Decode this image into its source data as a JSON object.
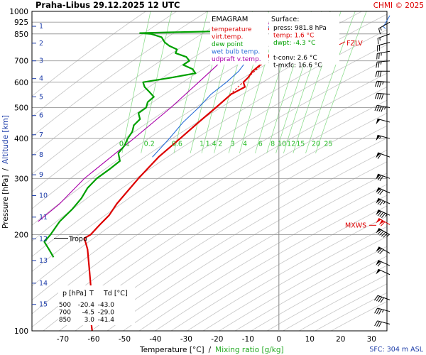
{
  "header": {
    "station": "Praha-Libus",
    "datetime": "29.12.2025 12 UTC",
    "credit": "CHMI © 2025"
  },
  "legend": {
    "title": "EMAGRAM",
    "items": [
      {
        "label": "temperature",
        "color": "#dd0000"
      },
      {
        "label": "virt.temp.",
        "color": "#dd0000"
      },
      {
        "label": "dew point",
        "color": "#00a000"
      },
      {
        "label": "wet bulb temp.",
        "color": "#2a6ed8"
      },
      {
        "label": "udpraft v.temp.",
        "color": "#aa00aa"
      }
    ]
  },
  "surface_box": {
    "title": "Surface:",
    "lines": [
      {
        "text": "press: 981.8 hPa",
        "color": "#000000"
      },
      {
        "text": "temp: 1.6 °C",
        "color": "#dd0000"
      },
      {
        "text": "dwpt: -4.3 °C",
        "color": "#00a000"
      },
      {
        "text": "",
        "color": "#000000"
      },
      {
        "text": "t-conv: 2.6 °C",
        "color": "#000000"
      },
      {
        "text": "t-mxfc: 16.6 °C",
        "color": "#000000"
      }
    ]
  },
  "table": {
    "headers": [
      "p [hPa]",
      "T",
      "Td [°C]"
    ],
    "rows": [
      [
        "500",
        "-20.4",
        "-43.0"
      ],
      [
        "700",
        "-4.5",
        "-29.0"
      ],
      [
        "850",
        "3.0",
        "-41.4"
      ]
    ]
  },
  "annotations": {
    "tropo": "Tropo",
    "mxws": "MXWS",
    "fzlv": "FZLV",
    "sfc": "SFC: 304 m ASL"
  },
  "chart_data": {
    "type": "line",
    "title": "",
    "xlabel": "Temperature [°C]",
    "xlabel_sep": "/",
    "xlabel2": "Mixing ratio [g/kg]",
    "ylabel": "Pressure [hPa]",
    "ylabel_sep": "/",
    "ylabel2": "Altitude [km]",
    "xlim": [
      -80,
      35
    ],
    "ylim": [
      1000,
      100
    ],
    "y_scale": "log",
    "x_ticks": [
      -70,
      -60,
      -50,
      -40,
      -30,
      -20,
      -10,
      0,
      10,
      20,
      30
    ],
    "p_ticks": [
      100,
      200,
      300,
      400,
      500,
      600,
      700,
      850,
      925,
      1000
    ],
    "p_gridlines": [
      200,
      300,
      400,
      500,
      600,
      700,
      850,
      925
    ],
    "altitude_ticks": [
      {
        "km": "1",
        "p": 898
      },
      {
        "km": "2",
        "p": 795
      },
      {
        "km": "3",
        "p": 700
      },
      {
        "km": "4",
        "p": 616
      },
      {
        "km": "5",
        "p": 540
      },
      {
        "km": "6",
        "p": 472
      },
      {
        "km": "7",
        "p": 411
      },
      {
        "km": "8",
        "p": 356
      },
      {
        "km": "9",
        "p": 308
      },
      {
        "km": "10",
        "p": 265
      },
      {
        "km": "11",
        "p": 227
      },
      {
        "km": "12",
        "p": 194
      },
      {
        "km": "13",
        "p": 166
      },
      {
        "km": "14",
        "p": 141
      },
      {
        "km": "15",
        "p": 121
      }
    ],
    "mixing_ratio_labels": [
      "0.1",
      "0.2",
      "0.6",
      "1",
      "1.4",
      "2",
      "3",
      "4",
      "6",
      "8",
      "10",
      "12",
      "15",
      "20",
      "25"
    ],
    "mixing_ratio_label_p": 405,
    "mixing_ratio_label_t": [
      -50,
      -42,
      -33,
      -25,
      -22,
      -19,
      -15,
      -11,
      -6,
      -2,
      1,
      4,
      7,
      12,
      16
    ],
    "tropopause_p": 195,
    "fzlv_p": 795,
    "mxws_p": 214,
    "series": [
      {
        "name": "temperature",
        "color": "#dd0000",
        "points": [
          {
            "p": 981.8,
            "t": 1.6
          },
          {
            "p": 950,
            "t": 1.0
          },
          {
            "p": 900,
            "t": 1.0
          },
          {
            "p": 880,
            "t": -3.5
          },
          {
            "p": 860,
            "t": 5.0
          },
          {
            "p": 850,
            "t": 3.0
          },
          {
            "p": 820,
            "t": 1.0
          },
          {
            "p": 780,
            "t": -1.0
          },
          {
            "p": 700,
            "t": -4.5
          },
          {
            "p": 650,
            "t": -8.5
          },
          {
            "p": 620,
            "t": -10.0
          },
          {
            "p": 600,
            "t": -11.5
          },
          {
            "p": 580,
            "t": -11.0
          },
          {
            "p": 550,
            "t": -15.5
          },
          {
            "p": 500,
            "t": -20.4
          },
          {
            "p": 450,
            "t": -26.0
          },
          {
            "p": 400,
            "t": -32.0
          },
          {
            "p": 350,
            "t": -39.0
          },
          {
            "p": 300,
            "t": -45.5
          },
          {
            "p": 250,
            "t": -52.5
          },
          {
            "p": 230,
            "t": -55.0
          },
          {
            "p": 215,
            "t": -58.0
          },
          {
            "p": 200,
            "t": -61.0
          },
          {
            "p": 195,
            "t": -63.0
          },
          {
            "p": 180,
            "t": -62.0
          },
          {
            "p": 160,
            "t": -61.5
          },
          {
            "p": 140,
            "t": -61.0
          },
          {
            "p": 125,
            "t": -60.5
          },
          {
            "p": 110,
            "t": -61.0
          },
          {
            "p": 100,
            "t": -60.5
          }
        ]
      },
      {
        "name": "virt.temp.",
        "color": "#dd0000",
        "dashed": true,
        "points": [
          {
            "p": 981.8,
            "t": 2.2
          },
          {
            "p": 950,
            "t": 1.6
          },
          {
            "p": 900,
            "t": 1.5
          },
          {
            "p": 880,
            "t": -3.0
          },
          {
            "p": 860,
            "t": 5.4
          },
          {
            "p": 850,
            "t": 3.4
          },
          {
            "p": 700,
            "t": -4.3
          },
          {
            "p": 500,
            "t": -20.3
          }
        ]
      },
      {
        "name": "dew point",
        "color": "#00a000",
        "points": [
          {
            "p": 981.8,
            "t": -4.3
          },
          {
            "p": 950,
            "t": -5.0
          },
          {
            "p": 900,
            "t": -6.0
          },
          {
            "p": 870,
            "t": -10.0
          },
          {
            "p": 860,
            "t": -35.0
          },
          {
            "p": 855,
            "t": -45.0
          },
          {
            "p": 850,
            "t": -41.4
          },
          {
            "p": 830,
            "t": -38.0
          },
          {
            "p": 800,
            "t": -37.0
          },
          {
            "p": 780,
            "t": -35.5
          },
          {
            "p": 760,
            "t": -33.0
          },
          {
            "p": 740,
            "t": -33.5
          },
          {
            "p": 720,
            "t": -30.0
          },
          {
            "p": 700,
            "t": -29.0
          },
          {
            "p": 680,
            "t": -31.0
          },
          {
            "p": 660,
            "t": -28.0
          },
          {
            "p": 640,
            "t": -27.0
          },
          {
            "p": 620,
            "t": -35.0
          },
          {
            "p": 600,
            "t": -44.0
          },
          {
            "p": 580,
            "t": -43.5
          },
          {
            "p": 560,
            "t": -42.0
          },
          {
            "p": 540,
            "t": -40.5
          },
          {
            "p": 520,
            "t": -42.5
          },
          {
            "p": 500,
            "t": -43.0
          },
          {
            "p": 480,
            "t": -45.5
          },
          {
            "p": 460,
            "t": -45.0
          },
          {
            "p": 440,
            "t": -47.0
          },
          {
            "p": 420,
            "t": -47.5
          },
          {
            "p": 400,
            "t": -49.0
          },
          {
            "p": 380,
            "t": -50.0
          },
          {
            "p": 360,
            "t": -52.0
          },
          {
            "p": 340,
            "t": -51.5
          },
          {
            "p": 320,
            "t": -55.0
          },
          {
            "p": 300,
            "t": -59.0
          },
          {
            "p": 280,
            "t": -62.0
          },
          {
            "p": 260,
            "t": -64.0
          },
          {
            "p": 240,
            "t": -67.0
          },
          {
            "p": 220,
            "t": -71.0
          },
          {
            "p": 200,
            "t": -74.0
          },
          {
            "p": 190,
            "t": -76.0
          },
          {
            "p": 180,
            "t": -74.5
          },
          {
            "p": 170,
            "t": -73.0
          }
        ]
      },
      {
        "name": "wet bulb temp.",
        "color": "#2a6ed8",
        "points": [
          {
            "p": 981.8,
            "t": -0.8
          },
          {
            "p": 950,
            "t": -2.0
          },
          {
            "p": 900,
            "t": -3.0
          },
          {
            "p": 850,
            "t": -5.5
          },
          {
            "p": 800,
            "t": -7.5
          },
          {
            "p": 700,
            "t": -10.5
          },
          {
            "p": 650,
            "t": -13.0
          },
          {
            "p": 600,
            "t": -17.0
          },
          {
            "p": 550,
            "t": -22.0
          },
          {
            "p": 500,
            "t": -26.0
          },
          {
            "p": 450,
            "t": -31.0
          },
          {
            "p": 400,
            "t": -35.5
          },
          {
            "p": 350,
            "t": -41.0
          }
        ]
      },
      {
        "name": "udpraft v.temp.",
        "color": "#aa00aa",
        "points": [
          {
            "p": 981.8,
            "t": 2.2
          },
          {
            "p": 900,
            "t": -4.5
          },
          {
            "p": 800,
            "t": -12.0
          },
          {
            "p": 700,
            "t": -18.5
          },
          {
            "p": 600,
            "t": -26.0
          },
          {
            "p": 500,
            "t": -35.0
          },
          {
            "p": 400,
            "t": -47.0
          },
          {
            "p": 300,
            "t": -63.0
          },
          {
            "p": 250,
            "t": -71.0
          },
          {
            "p": 220,
            "t": -78.0
          }
        ]
      }
    ],
    "winds": [
      {
        "p": 970,
        "dir": 210,
        "kt": 5,
        "color": "#2a6ed8"
      },
      {
        "p": 925,
        "dir": 240,
        "kt": 15
      },
      {
        "p": 850,
        "dir": 250,
        "kt": 15
      },
      {
        "p": 800,
        "dir": 255,
        "kt": 20
      },
      {
        "p": 750,
        "dir": 260,
        "kt": 25
      },
      {
        "p": 700,
        "dir": 265,
        "kt": 25
      },
      {
        "p": 650,
        "dir": 270,
        "kt": 30
      },
      {
        "p": 600,
        "dir": 275,
        "kt": 35
      },
      {
        "p": 550,
        "dir": 275,
        "kt": 40
      },
      {
        "p": 500,
        "dir": 280,
        "kt": 45
      },
      {
        "p": 450,
        "dir": 285,
        "kt": 50
      },
      {
        "p": 400,
        "dir": 285,
        "kt": 55
      },
      {
        "p": 350,
        "dir": 290,
        "kt": 60
      },
      {
        "p": 300,
        "dir": 290,
        "kt": 70
      },
      {
        "p": 270,
        "dir": 295,
        "kt": 70
      },
      {
        "p": 250,
        "dir": 295,
        "kt": 75
      },
      {
        "p": 230,
        "dir": 295,
        "kt": 85
      },
      {
        "p": 215,
        "dir": 300,
        "kt": 110,
        "color": "#dd0000"
      },
      {
        "p": 200,
        "dir": 300,
        "kt": 95
      },
      {
        "p": 175,
        "dir": 300,
        "kt": 70
      },
      {
        "p": 160,
        "dir": 295,
        "kt": 60
      },
      {
        "p": 150,
        "dir": 295,
        "kt": 50
      },
      {
        "p": 125,
        "dir": 290,
        "kt": 40
      },
      {
        "p": 115,
        "dir": 285,
        "kt": 35
      },
      {
        "p": 105,
        "dir": 285,
        "kt": 30
      }
    ]
  }
}
